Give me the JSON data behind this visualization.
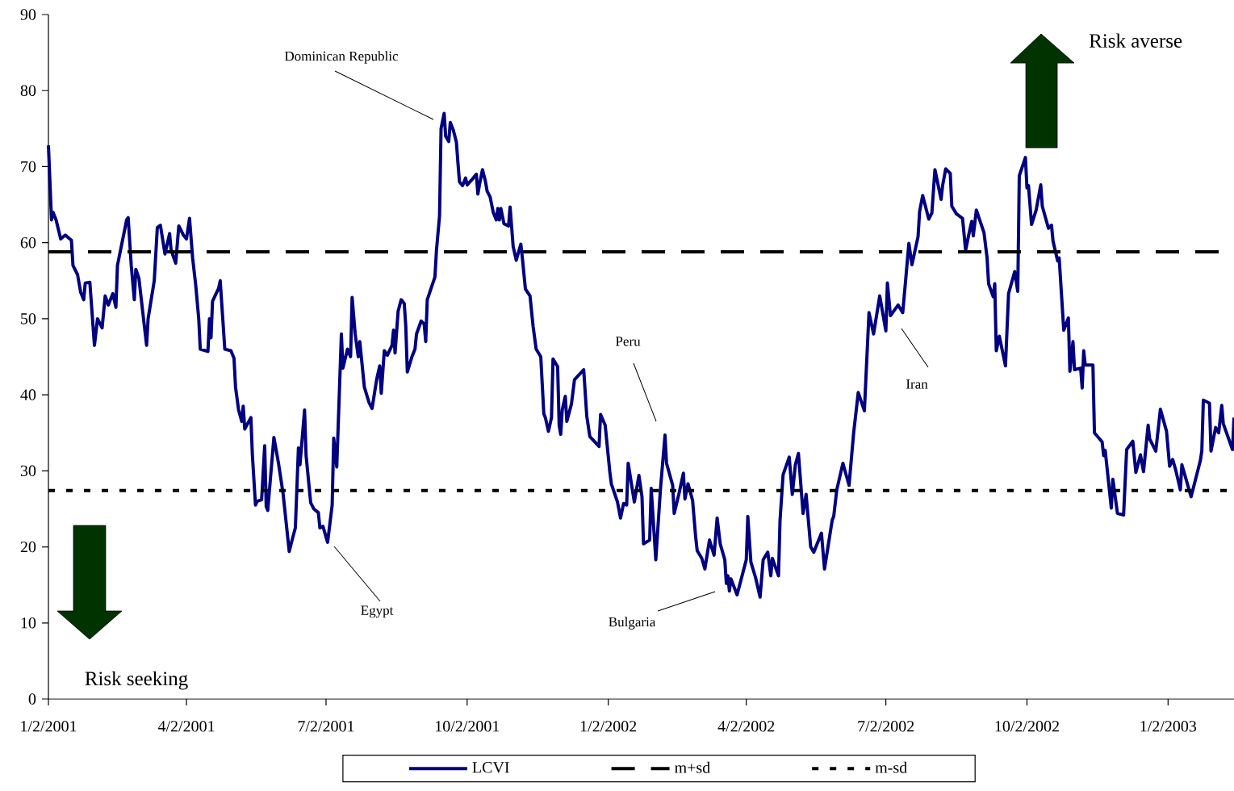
{
  "chart_data": {
    "type": "line",
    "x": [
      "2001-01-02",
      "2001-01-04",
      "2001-01-05",
      "2001-01-07",
      "2001-01-10",
      "2001-01-13",
      "2001-01-17",
      "2001-01-18",
      "2001-01-21",
      "2001-01-23",
      "2001-01-25",
      "2001-01-26",
      "2001-01-29",
      "2001-02-01",
      "2001-02-03",
      "2001-02-06",
      "2001-02-08",
      "2001-02-10",
      "2001-02-13",
      "2001-02-15",
      "2001-02-16",
      "2001-02-19",
      "2001-02-22",
      "2001-02-23",
      "2001-02-25",
      "2001-02-27",
      "2001-02-28",
      "2001-03-02",
      "2001-03-05",
      "2001-03-07",
      "2001-03-08",
      "2001-03-12",
      "2001-03-14",
      "2001-03-16",
      "2001-03-19",
      "2001-03-22",
      "2001-03-23",
      "2001-03-26",
      "2001-03-28",
      "2001-03-31",
      "2001-04-02",
      "2001-04-04",
      "2001-04-06",
      "2001-04-08",
      "2001-04-10",
      "2001-04-11",
      "2001-04-16",
      "2001-04-17",
      "2001-04-18",
      "2001-04-19",
      "2001-04-23",
      "2001-04-24",
      "2001-04-25",
      "2001-04-27",
      "2001-05-01",
      "2001-05-03",
      "2001-05-04",
      "2001-05-06",
      "2001-05-08",
      "2001-05-09",
      "2001-05-10",
      "2001-05-14",
      "2001-05-15",
      "2001-05-17",
      "2001-05-18",
      "2001-05-21",
      "2001-05-23",
      "2001-05-24",
      "2001-05-25",
      "2001-05-29",
      "2001-06-01",
      "2001-06-04",
      "2001-06-08",
      "2001-06-10",
      "2001-06-12",
      "2001-06-14",
      "2001-06-15",
      "2001-06-18",
      "2001-06-19",
      "2001-06-22",
      "2001-06-24",
      "2001-06-27",
      "2001-06-28",
      "2001-06-30",
      "2001-07-03",
      "2001-07-06",
      "2001-07-07",
      "2001-07-09",
      "2001-07-12",
      "2001-07-13",
      "2001-07-16",
      "2001-07-18",
      "2001-07-19",
      "2001-07-21",
      "2001-07-23",
      "2001-07-24",
      "2001-07-27",
      "2001-07-30",
      "2001-08-01",
      "2001-08-04",
      "2001-08-06",
      "2001-08-07",
      "2001-08-09",
      "2001-08-11",
      "2001-08-14",
      "2001-08-15",
      "2001-08-16",
      "2001-08-18",
      "2001-08-20",
      "2001-08-22",
      "2001-08-23",
      "2001-08-24",
      "2001-08-27",
      "2001-08-29",
      "2001-08-30",
      "2001-09-02",
      "2001-09-04",
      "2001-09-05",
      "2001-09-06",
      "2001-09-11",
      "2001-09-12",
      "2001-09-14",
      "2001-09-15",
      "2001-09-17",
      "2001-09-18",
      "2001-09-20",
      "2001-09-21",
      "2001-09-23",
      "2001-09-25",
      "2001-09-26",
      "2001-09-27",
      "2001-09-29",
      "2001-10-01",
      "2001-10-02",
      "2001-10-06",
      "2001-10-08",
      "2001-10-09",
      "2001-10-10",
      "2001-10-12",
      "2001-10-14",
      "2001-10-15",
      "2001-10-17",
      "2001-10-19",
      "2001-10-21",
      "2001-10-22",
      "2001-10-23",
      "2001-10-24",
      "2001-10-26",
      "2001-10-29",
      "2001-10-30",
      "2001-11-01",
      "2001-11-03",
      "2001-11-06",
      "2001-11-07",
      "2001-11-09",
      "2001-11-12",
      "2001-11-14",
      "2001-11-16",
      "2001-11-19",
      "2001-11-21",
      "2001-11-22",
      "2001-11-24",
      "2001-11-26",
      "2001-11-27",
      "2001-11-30",
      "2001-12-01",
      "2001-12-02",
      "2001-12-03",
      "2001-12-05",
      "2001-12-06",
      "2001-12-09",
      "2001-12-11",
      "2001-12-17",
      "2001-12-19",
      "2001-12-21",
      "2001-12-27",
      "2001-12-28",
      "2001-12-31",
      "2002-01-03",
      "2002-01-04",
      "2002-01-08",
      "2002-01-10",
      "2002-01-12",
      "2002-01-14",
      "2002-01-15",
      "2002-01-19",
      "2002-01-22",
      "2002-01-24",
      "2002-01-25",
      "2002-01-29",
      "2002-01-30",
      "2002-02-02",
      "2002-02-05",
      "2002-02-08",
      "2002-02-09",
      "2002-02-13",
      "2002-02-14",
      "2002-02-17",
      "2002-02-20",
      "2002-02-21",
      "2002-02-23",
      "2002-02-26",
      "2002-02-28",
      "2002-03-01",
      "2002-03-04",
      "2002-03-06",
      "2002-03-09",
      "2002-03-12",
      "2002-03-14",
      "2002-03-16",
      "2002-03-19",
      "2002-03-20",
      "2002-03-21",
      "2002-03-22",
      "2002-03-23",
      "2002-03-27",
      "2002-04-02",
      "2002-04-03",
      "2002-04-05",
      "2002-04-08",
      "2002-04-11",
      "2002-04-13",
      "2002-04-16",
      "2002-04-18",
      "2002-04-19",
      "2002-04-23",
      "2002-04-24",
      "2002-04-26",
      "2002-04-30",
      "2002-05-02",
      "2002-05-04",
      "2002-05-06",
      "2002-05-09",
      "2002-05-11",
      "2002-05-14",
      "2002-05-16",
      "2002-05-21",
      "2002-05-23",
      "2002-05-28",
      "2002-05-29",
      "2002-05-31",
      "2002-06-04",
      "2002-06-08",
      "2002-06-11",
      "2002-06-14",
      "2002-06-18",
      "2002-06-21",
      "2002-06-24",
      "2002-06-28",
      "2002-07-02",
      "2002-07-03",
      "2002-07-05",
      "2002-07-10",
      "2002-07-13",
      "2002-07-15",
      "2002-07-17",
      "2002-07-19",
      "2002-07-23",
      "2002-07-24",
      "2002-07-26",
      "2002-07-30",
      "2002-08-01",
      "2002-08-03",
      "2002-08-07",
      "2002-08-08",
      "2002-08-10",
      "2002-08-13",
      "2002-08-14",
      "2002-08-17",
      "2002-08-21",
      "2002-08-23",
      "2002-08-25",
      "2002-08-27",
      "2002-08-28",
      "2002-08-30",
      "2002-09-04",
      "2002-09-06",
      "2002-09-07",
      "2002-09-10",
      "2002-09-11",
      "2002-09-12",
      "2002-09-14",
      "2002-09-18",
      "2002-09-20",
      "2002-09-24",
      "2002-09-26",
      "2002-09-27",
      "2002-10-01",
      "2002-10-02",
      "2002-10-03",
      "2002-10-05",
      "2002-10-08",
      "2002-10-11",
      "2002-10-12",
      "2002-10-16",
      "2002-10-18",
      "2002-10-19",
      "2002-10-22",
      "2002-10-23",
      "2002-10-26",
      "2002-10-29",
      "2002-10-30",
      "2002-11-01",
      "2002-11-02",
      "2002-11-06",
      "2002-11-07",
      "2002-11-08",
      "2002-11-09",
      "2002-11-14",
      "2002-11-15",
      "2002-11-20",
      "2002-11-21",
      "2002-11-22",
      "2002-11-26",
      "2002-11-27",
      "2002-11-30",
      "2002-12-04",
      "2002-12-06",
      "2002-12-10",
      "2002-12-12",
      "2002-12-15",
      "2002-12-17",
      "2002-12-20",
      "2002-12-21",
      "2002-12-25",
      "2002-12-28",
      "2003-01-01",
      "2003-01-03",
      "2003-01-05",
      "2003-01-07",
      "2003-01-10",
      "2003-01-11",
      "2003-01-17",
      "2003-01-23",
      "2003-01-24",
      "2003-01-25",
      "2003-01-29",
      "2003-01-30",
      "2003-02-02",
      "2003-02-04",
      "2003-02-06",
      "2003-02-07",
      "2003-02-13",
      "2003-02-14"
    ],
    "series": [
      {
        "name": "LCVI",
        "color": "#000080",
        "values": [
          72.8,
          63,
          64,
          63,
          60.5,
          61,
          60.3,
          57,
          55.8,
          53.5,
          52.5,
          54.7,
          54.8,
          46.5,
          50,
          48.8,
          53,
          51.8,
          53.3,
          51.5,
          57,
          60,
          63,
          63.3,
          57,
          52.5,
          56.5,
          55.3,
          50,
          46.5,
          50,
          55,
          62,
          62.3,
          58.5,
          61.2,
          59,
          57.3,
          62.2,
          61,
          60.5,
          63.2,
          58,
          54.5,
          50,
          46,
          45.7,
          50,
          47.5,
          52.3,
          54,
          55,
          52,
          46,
          45.8,
          44.8,
          41,
          38,
          36.5,
          38.5,
          35.5,
          37,
          32,
          25.5,
          26,
          26.2,
          33.3,
          25.3,
          24.8,
          34.4,
          31,
          27,
          19.4,
          21,
          22.5,
          33,
          30.8,
          38,
          32,
          25.8,
          25,
          24.5,
          22.5,
          22.7,
          20.6,
          25.5,
          34.3,
          30.5,
          48,
          43.5,
          46,
          45,
          52.8,
          48,
          45,
          47,
          41,
          39,
          38.2,
          42,
          43.8,
          40.2,
          45.8,
          45.2,
          46.5,
          48.5,
          45.5,
          51,
          52.5,
          52,
          49,
          43,
          45,
          46,
          48,
          49.7,
          49.3,
          47,
          52.5,
          55.5,
          59,
          63.5,
          75,
          77,
          74,
          73.3,
          75.8,
          74.8,
          73.2,
          70.5,
          68,
          67.5,
          68.5,
          67.6,
          68.5,
          69,
          66.4,
          67.6,
          69.6,
          68,
          66.8,
          66,
          64,
          63,
          64.5,
          63,
          64.5,
          62.5,
          62.2,
          64.7,
          59.5,
          57.7,
          59.8,
          58,
          53.9,
          53,
          49,
          46,
          45,
          37.5,
          37,
          35.2,
          37,
          44.7,
          43.7,
          36,
          34.8,
          38,
          39.8,
          36.5,
          38.8,
          42,
          43.3,
          37.2,
          34.5,
          33.2,
          37.4,
          36,
          29.9,
          28.3,
          25.9,
          23.8,
          25.7,
          25.5,
          31,
          25.9,
          29.4,
          26.6,
          20.4,
          20.9,
          27.7,
          18.3,
          27.5,
          34.7,
          31,
          28.1,
          24.4,
          26.9,
          29.7,
          26.3,
          28.3,
          26.1,
          21.3,
          19.5,
          18.5,
          17.1,
          20.9,
          18.9,
          23.8,
          20.4,
          18.3,
          15.2,
          16.2,
          14.2,
          15.8,
          13.7,
          18.3,
          24,
          18,
          16,
          13.4,
          18.3,
          19.3,
          16.2,
          18.5,
          16.2,
          23.5,
          29.5,
          31.8,
          26.9,
          30.8,
          32.3,
          24.4,
          26.9,
          20,
          19.3,
          21.8,
          17.1,
          23.5,
          24,
          27.5,
          31,
          28.1,
          35,
          40.3,
          37.9,
          50.8,
          48,
          53,
          48.4,
          54.7,
          50.4,
          51.8,
          50.8,
          55.3,
          59.9,
          57.1,
          60.8,
          64.1,
          66.2,
          63.1,
          63.9,
          69.6,
          65.7,
          67.5,
          69.7,
          69.1,
          64.8,
          63.8,
          63.2,
          59,
          61,
          62.8,
          60.9,
          64.3,
          61.3,
          58,
          54.6,
          52.9,
          54.6,
          45.8,
          47.7,
          43.8,
          53.3,
          56.2,
          53.6,
          68.8,
          71.2,
          67.2,
          67.5,
          62.4,
          64.3,
          67.6,
          64.8,
          61.9,
          62.3,
          60.2,
          57.6,
          58,
          48.5,
          50.1,
          43.1,
          47,
          43.3,
          43.5,
          40.9,
          45.8,
          43.9,
          43.9,
          35,
          33.8,
          32,
          32.7,
          25.1,
          28.9,
          24.4,
          24.2,
          32.8,
          33.9,
          29.8,
          32.1,
          29.9,
          36,
          34.2,
          32.6,
          38.1,
          35.2,
          30.6,
          31.5,
          30.1,
          27.5,
          30.8,
          26.6,
          31.3,
          32.6,
          39.3,
          38.9,
          32.6,
          35.7,
          35,
          38.6,
          36.2,
          32.8,
          37
        ]
      }
    ],
    "xlim": [
      "2001-01-02",
      "2003-02-14"
    ],
    "ylim": [
      0,
      90
    ],
    "xticks": [
      {
        "value": "2001-01-02",
        "label": "1/2/2001"
      },
      {
        "value": "2001-04-02",
        "label": "4/2/2001"
      },
      {
        "value": "2001-07-02",
        "label": "7/2/2001"
      },
      {
        "value": "2001-10-02",
        "label": "10/2/2001"
      },
      {
        "value": "2002-01-02",
        "label": "1/2/2002"
      },
      {
        "value": "2002-04-02",
        "label": "4/2/2002"
      },
      {
        "value": "2002-07-02",
        "label": "7/2/2002"
      },
      {
        "value": "2002-10-02",
        "label": "10/2/2002"
      },
      {
        "value": "2003-01-02",
        "label": "1/2/2003"
      }
    ],
    "yticks": [
      0,
      10,
      20,
      30,
      40,
      50,
      60,
      70,
      80,
      90
    ],
    "ref_lines": [
      {
        "axis": "y",
        "value": 58.8,
        "label": "m+sd",
        "color": "#000000",
        "line_style": "dashed"
      },
      {
        "axis": "y",
        "value": 27.4,
        "label": "m-sd",
        "color": "#000000",
        "line_style": "dotted"
      }
    ],
    "annotations": [
      "Dominican Republic",
      "Egypt",
      "Peru",
      "Bulgaria",
      "Iran",
      "Risk averse",
      "Risk seeking"
    ],
    "legend": "bottom"
  }
}
